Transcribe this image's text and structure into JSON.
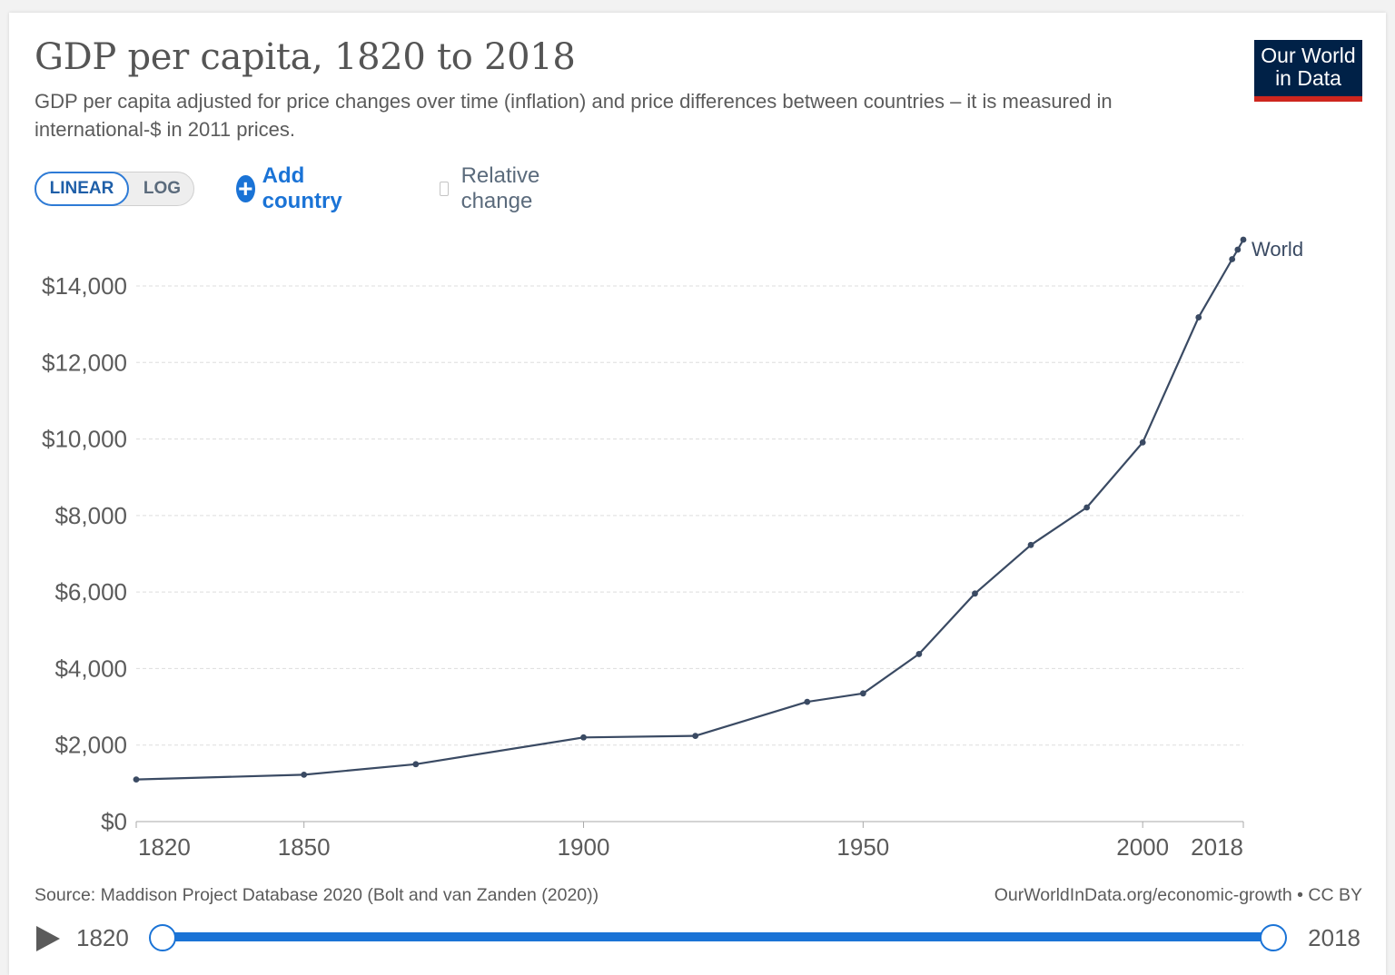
{
  "header": {
    "title": "GDP per capita, 1820 to 2018",
    "subtitle": "GDP per capita adjusted for price changes over time (inflation) and price differences between countries – it is measured in international-$ in 2011 prices.",
    "logo_line1": "Our World",
    "logo_line2": "in Data"
  },
  "controls": {
    "linear_label": "LINEAR",
    "log_label": "LOG",
    "add_country_label": "Add country",
    "relative_change_label": "Relative change"
  },
  "footer": {
    "source": "Source: Maddison Project Database 2020 (Bolt and van Zanden (2020))",
    "license": "OurWorldInData.org/economic-growth • CC BY"
  },
  "timeline": {
    "start_year": "1820",
    "end_year": "2018"
  },
  "colors": {
    "line": "#3a4a63",
    "grid": "#dddddd",
    "accent": "#1a73d6",
    "logo_bg": "#002147",
    "logo_red": "#ce261e"
  },
  "chart_data": {
    "type": "line",
    "title": "GDP per capita, 1820 to 2018",
    "xlabel": "",
    "ylabel": "",
    "xlim": [
      1820,
      2018
    ],
    "ylim": [
      0,
      14000
    ],
    "x_ticks": [
      "1820",
      "1850",
      "1900",
      "1950",
      "2000",
      "2018"
    ],
    "x_tick_values": [
      1820,
      1850,
      1900,
      1950,
      2000,
      2018
    ],
    "y_ticks": [
      "$0",
      "$2,000",
      "$4,000",
      "$6,000",
      "$8,000",
      "$10,000",
      "$12,000",
      "$14,000"
    ],
    "y_tick_values": [
      0,
      2000,
      4000,
      6000,
      8000,
      10000,
      12000,
      14000
    ],
    "grid": true,
    "series": [
      {
        "name": "World",
        "x": [
          1820,
          1850,
          1870,
          1900,
          1920,
          1940,
          1950,
          1960,
          1970,
          1980,
          1990,
          2000,
          2010,
          2016,
          2017,
          2018
        ],
        "values": [
          1100,
          1225,
          1500,
          2200,
          2240,
          3130,
          3350,
          4380,
          5960,
          7230,
          8210,
          9910,
          13180,
          14700,
          14950,
          15210
        ]
      }
    ]
  }
}
